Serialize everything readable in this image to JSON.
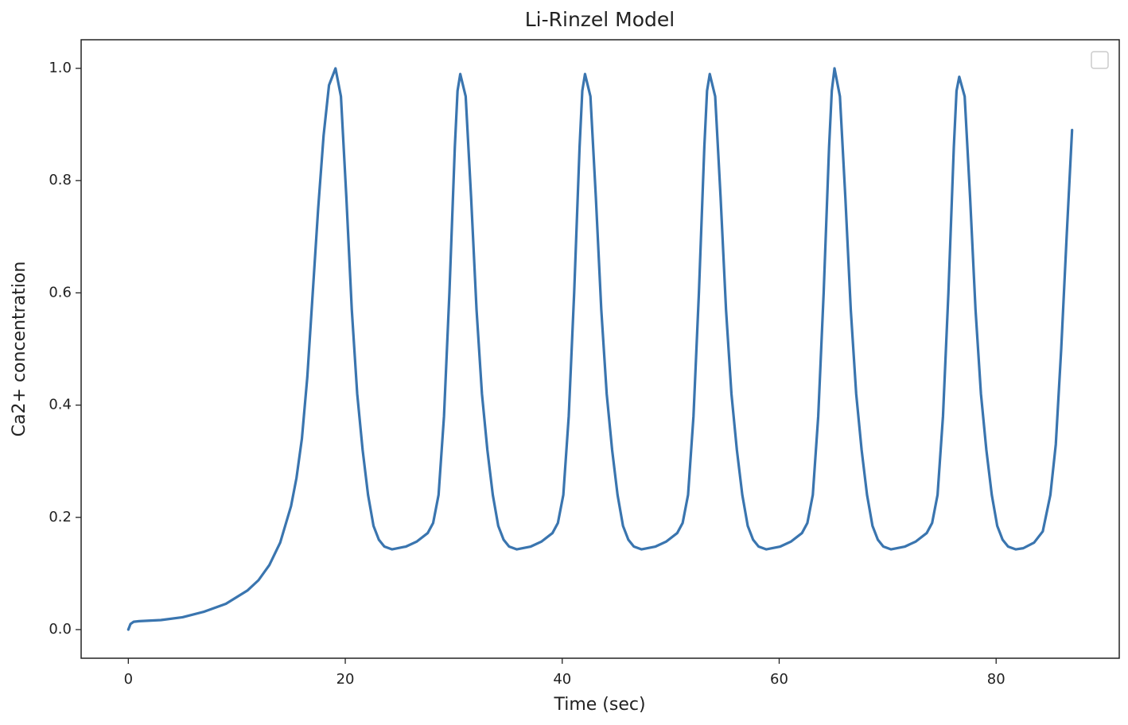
{
  "chart_data": {
    "type": "line",
    "title": "Li-Rinzel Model",
    "x_label": "Time (sec)",
    "y_label": "Ca2+ concentration",
    "x": [
      0,
      0.2,
      0.5,
      1,
      3,
      5,
      7,
      9,
      11,
      12,
      13,
      14,
      15,
      15.5,
      16,
      16.5,
      17,
      17.5,
      18,
      18.5,
      19.1,
      19.6,
      20.1,
      20.6,
      21.1,
      21.6,
      22.1,
      22.6,
      23.1,
      23.6,
      24.3,
      25.6,
      26.6,
      27.6,
      28.1,
      28.6,
      29.1,
      29.6,
      30.1,
      30.35,
      30.6,
      31.1,
      31.6,
      32.1,
      32.6,
      33.1,
      33.6,
      34.1,
      34.6,
      35.1,
      35.8,
      37.1,
      38.1,
      39.1,
      39.6,
      40.1,
      40.6,
      41.1,
      41.6,
      41.85,
      42.1,
      42.6,
      43.1,
      43.6,
      44.1,
      44.6,
      45.1,
      45.6,
      46.1,
      46.6,
      47.3,
      48.6,
      49.6,
      50.6,
      51.1,
      51.6,
      52.1,
      52.6,
      53.1,
      53.35,
      53.6,
      54.1,
      54.6,
      55.1,
      55.6,
      56.1,
      56.6,
      57.1,
      57.6,
      58.1,
      58.8,
      60.1,
      61.1,
      62.1,
      62.6,
      63.1,
      63.6,
      64.1,
      64.6,
      64.85,
      65.1,
      65.6,
      66.1,
      66.6,
      67.1,
      67.6,
      68.1,
      68.6,
      69.1,
      69.6,
      70.3,
      71.6,
      72.6,
      73.6,
      74.1,
      74.6,
      75.1,
      75.6,
      76.1,
      76.35,
      76.6,
      77.1,
      77.6,
      78.1,
      78.6,
      79.1,
      79.6,
      80.1,
      80.6,
      81.1,
      81.8,
      82.5,
      83.5,
      84.3,
      85,
      85.5,
      86,
      86.5,
      87
    ],
    "series": [
      {
        "color": "#3a75af",
        "values": [
          0,
          0.01,
          0.014,
          0.015,
          0.017,
          0.022,
          0.032,
          0.046,
          0.07,
          0.088,
          0.115,
          0.155,
          0.22,
          0.27,
          0.34,
          0.45,
          0.6,
          0.75,
          0.88,
          0.97,
          1.0,
          0.95,
          0.77,
          0.57,
          0.42,
          0.32,
          0.24,
          0.185,
          0.16,
          0.148,
          0.143,
          0.148,
          0.157,
          0.172,
          0.19,
          0.24,
          0.38,
          0.6,
          0.86,
          0.96,
          0.99,
          0.95,
          0.77,
          0.57,
          0.42,
          0.32,
          0.24,
          0.185,
          0.16,
          0.148,
          0.143,
          0.148,
          0.157,
          0.172,
          0.19,
          0.24,
          0.38,
          0.6,
          0.86,
          0.96,
          0.99,
          0.95,
          0.77,
          0.57,
          0.42,
          0.32,
          0.24,
          0.185,
          0.16,
          0.148,
          0.143,
          0.148,
          0.157,
          0.172,
          0.19,
          0.24,
          0.38,
          0.6,
          0.86,
          0.96,
          0.99,
          0.95,
          0.77,
          0.57,
          0.42,
          0.32,
          0.24,
          0.185,
          0.16,
          0.148,
          0.143,
          0.148,
          0.157,
          0.172,
          0.19,
          0.24,
          0.38,
          0.6,
          0.86,
          0.96,
          1.0,
          0.95,
          0.77,
          0.57,
          0.42,
          0.32,
          0.24,
          0.185,
          0.16,
          0.148,
          0.143,
          0.148,
          0.157,
          0.172,
          0.19,
          0.24,
          0.38,
          0.6,
          0.86,
          0.96,
          0.985,
          0.95,
          0.77,
          0.57,
          0.42,
          0.32,
          0.24,
          0.185,
          0.16,
          0.148,
          0.143,
          0.145,
          0.155,
          0.175,
          0.24,
          0.33,
          0.5,
          0.7,
          0.89
        ]
      }
    ],
    "xlim": [
      -4.35,
      91.35
    ],
    "ylim": [
      -0.051,
      1.051
    ],
    "xticks": [
      0,
      20,
      40,
      60,
      80
    ],
    "yticks": [
      {
        "value": 0,
        "label": "0.0"
      },
      0.2,
      0.4,
      0.6,
      0.8,
      {
        "value": 1,
        "label": "1.0"
      }
    ],
    "grid": false
  }
}
